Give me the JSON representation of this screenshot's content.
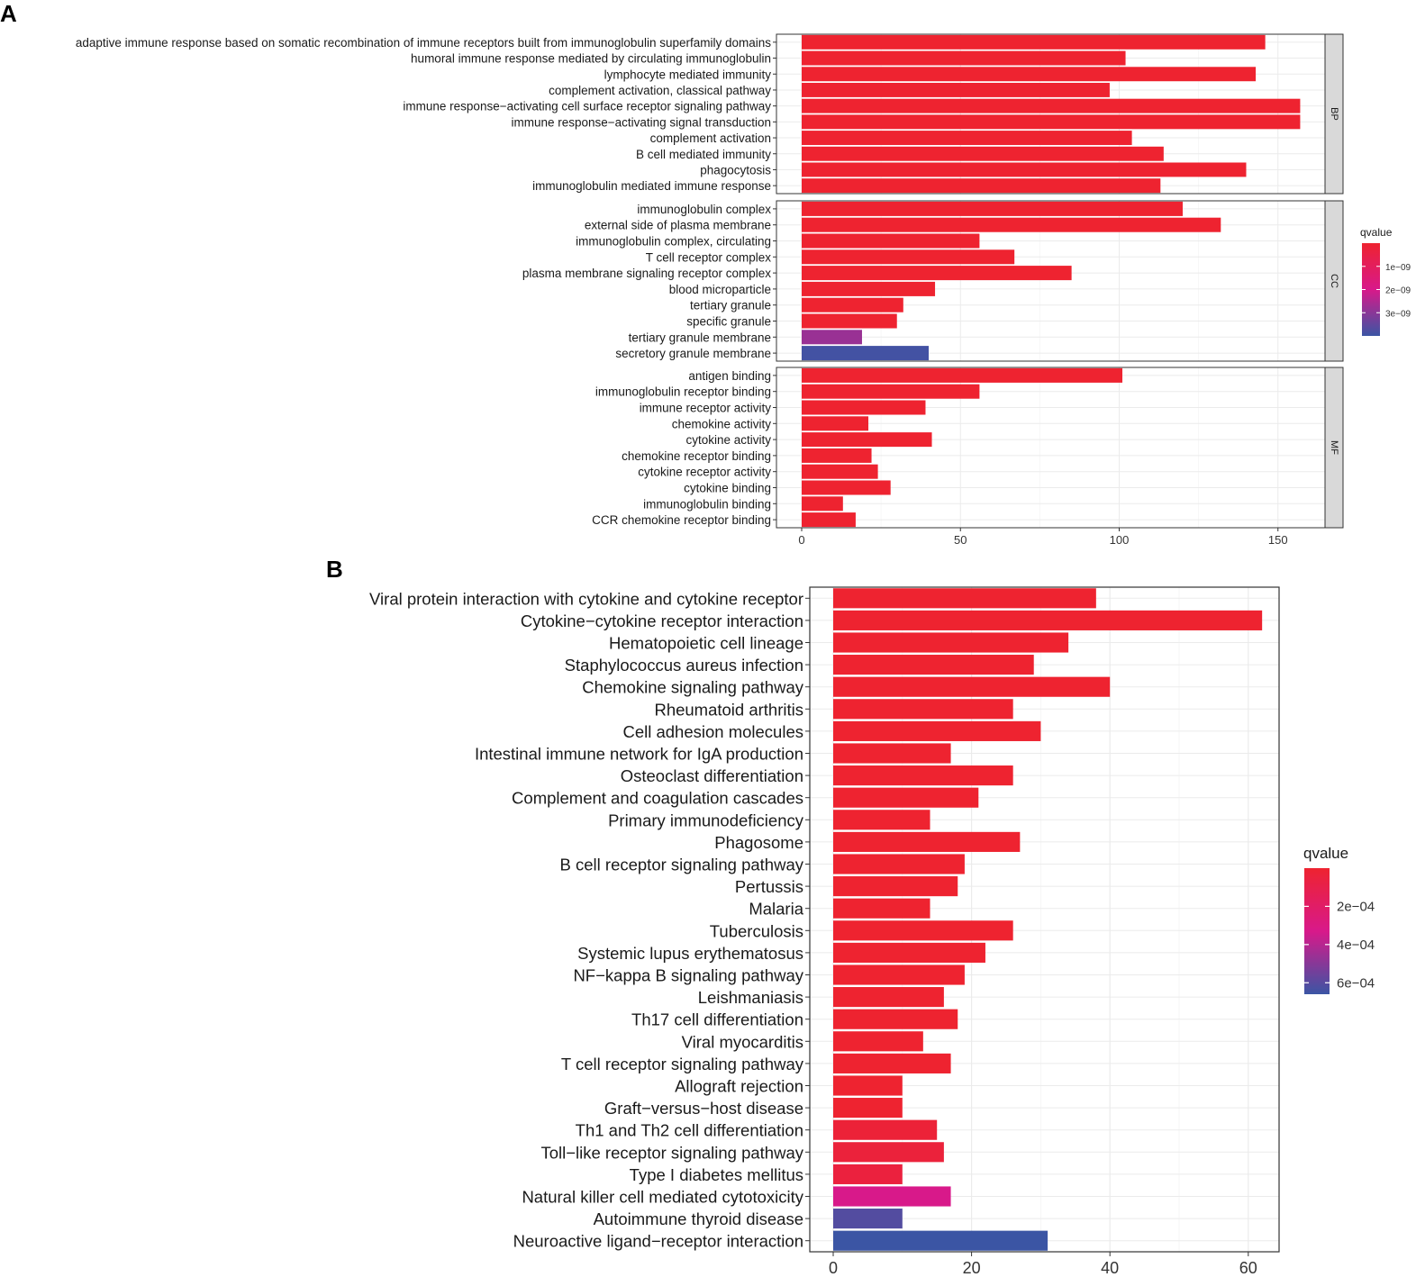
{
  "colors": {
    "high": "#ee2330",
    "mid": "#d8198a",
    "low": "#3b55a4",
    "grid": "#ebebeb",
    "strip": "#d9d9d9"
  },
  "panel_a": {
    "letter": "A"
  },
  "panel_b": {
    "letter": "B"
  },
  "chart_data": [
    {
      "type": "bar",
      "orientation": "horizontal",
      "panel": "A",
      "xlim": [
        0,
        165
      ],
      "xticks": [
        0,
        50,
        100,
        150
      ],
      "facets": [
        {
          "name": "BP",
          "categories": [
            "adaptive immune response based on somatic recombination of immune receptors built from immunoglobulin superfamily domains",
            "humoral immune response mediated by circulating immunoglobulin",
            "lymphocyte mediated immunity",
            "complement activation, classical pathway",
            "immune response−activating cell surface receptor signaling pathway",
            "immune response−activating signal transduction",
            "complement activation",
            "B cell mediated immunity",
            "phagocytosis",
            "immunoglobulin mediated immune response"
          ],
          "values": [
            146,
            102,
            143,
            97,
            157,
            157,
            104,
            114,
            140,
            113
          ],
          "qvalue": [
            0,
            0,
            0,
            0,
            0,
            0,
            0,
            0,
            0,
            0
          ]
        },
        {
          "name": "CC",
          "categories": [
            "immunoglobulin complex",
            "external side of plasma membrane",
            "immunoglobulin complex, circulating",
            "T cell receptor complex",
            "plasma membrane signaling receptor complex",
            "blood microparticle",
            "tertiary granule",
            "specific granule",
            "tertiary granule membrane",
            "secretory granule membrane"
          ],
          "values": [
            120,
            132,
            56,
            67,
            85,
            42,
            32,
            30,
            19,
            40
          ],
          "qvalue": [
            0,
            0,
            0,
            0,
            0,
            0,
            0,
            0,
            2.8e-09,
            3.9e-09
          ]
        },
        {
          "name": "MF",
          "categories": [
            "antigen binding",
            "immunoglobulin receptor binding",
            "immune receptor activity",
            "chemokine activity",
            "cytokine activity",
            "chemokine receptor binding",
            "cytokine receptor activity",
            "cytokine binding",
            "immunoglobulin binding",
            "CCR chemokine receptor binding"
          ],
          "values": [
            101,
            56,
            39,
            21,
            41,
            22,
            24,
            28,
            13,
            17
          ],
          "qvalue": [
            0,
            0,
            0,
            0,
            0,
            0,
            0,
            0,
            0,
            0
          ]
        }
      ],
      "legend": {
        "title": "qvalue",
        "labels": [
          "1e−09",
          "2e−09",
          "3e−09"
        ],
        "values": [
          1e-09,
          2e-09,
          3e-09
        ],
        "range": [
          0,
          4e-09
        ]
      }
    },
    {
      "type": "bar",
      "orientation": "horizontal",
      "panel": "B",
      "xlim": [
        -3,
        65
      ],
      "xticks": [
        0,
        20,
        40,
        60
      ],
      "categories": [
        "Viral protein interaction with cytokine and cytokine receptor",
        "Cytokine−cytokine receptor interaction",
        "Hematopoietic cell lineage",
        "Staphylococcus aureus infection",
        "Chemokine signaling pathway",
        "Rheumatoid arthritis",
        "Cell adhesion molecules",
        "Intestinal immune network for IgA production",
        "Osteoclast differentiation",
        "Complement and coagulation cascades",
        "Primary immunodeficiency",
        "Phagosome",
        "B cell receptor signaling pathway",
        "Pertussis",
        "Malaria",
        "Tuberculosis",
        "Systemic lupus erythematosus",
        "NF−kappa B signaling pathway",
        "Leishmaniasis",
        "Th17 cell differentiation",
        "Viral myocarditis",
        "T cell receptor signaling pathway",
        "Allograft rejection",
        "Graft−versus−host disease",
        "Th1 and Th2 cell differentiation",
        "Toll−like receptor signaling pathway",
        "Type I diabetes mellitus",
        "Natural killer cell mediated cytotoxicity",
        "Autoimmune thyroid disease",
        "Neuroactive ligand−receptor interaction"
      ],
      "values": [
        38,
        62,
        34,
        29,
        40,
        26,
        30,
        17,
        26,
        21,
        14,
        27,
        19,
        18,
        14,
        26,
        22,
        19,
        16,
        18,
        13,
        17,
        10,
        10,
        15,
        16,
        10,
        17,
        10,
        31
      ],
      "qvalue": [
        1e-06,
        1e-06,
        1e-06,
        1e-06,
        1e-06,
        1e-06,
        1e-06,
        1e-06,
        1e-06,
        1e-06,
        1e-06,
        1e-06,
        1e-06,
        1e-06,
        1e-06,
        1e-06,
        1e-06,
        1e-06,
        1e-06,
        1e-06,
        1e-06,
        1e-06,
        1e-06,
        1e-06,
        3e-05,
        4e-05,
        5e-05,
        0.00033,
        0.00061,
        0.00066
      ],
      "legend": {
        "title": "qvalue",
        "labels": [
          "2e−04",
          "4e−04",
          "6e−04"
        ],
        "values": [
          0.0002,
          0.0004,
          0.0006
        ],
        "range": [
          0,
          0.00066
        ]
      }
    }
  ]
}
